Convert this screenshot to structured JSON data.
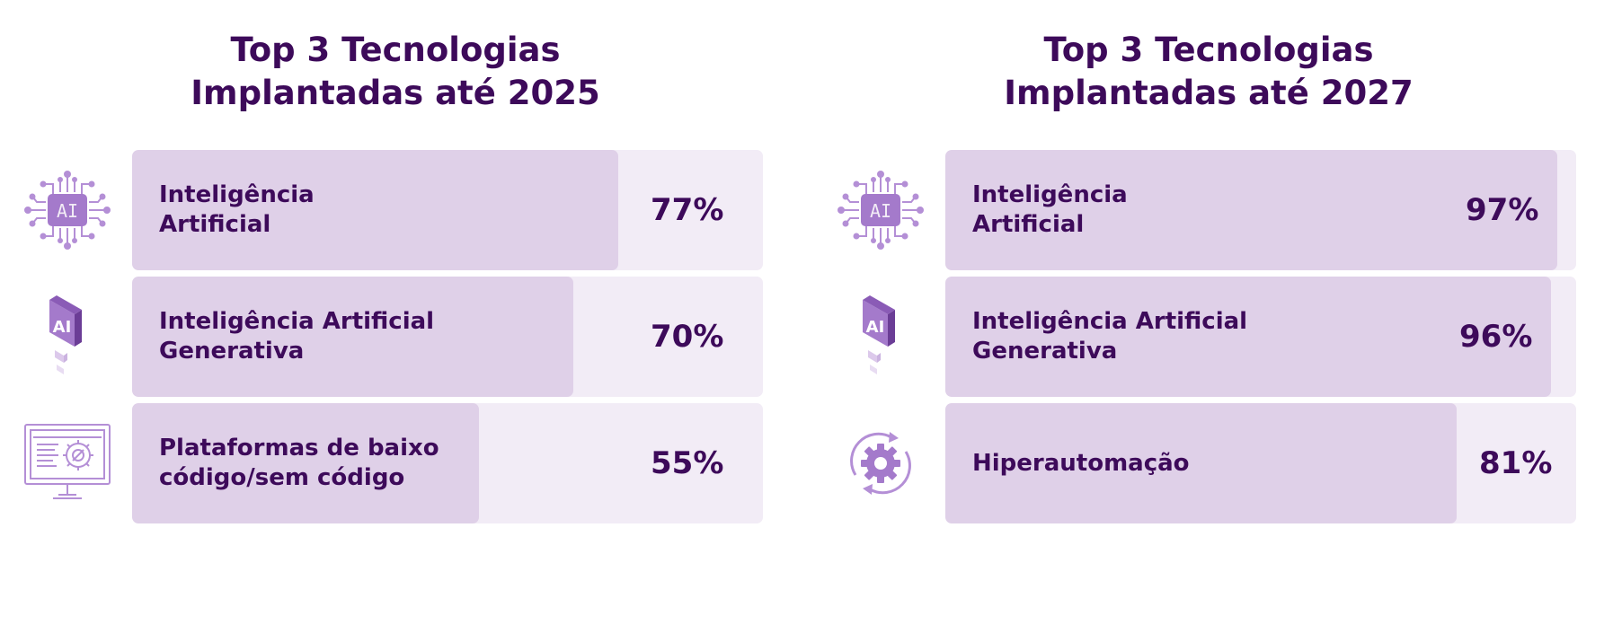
{
  "chart_data": [
    {
      "type": "bar",
      "orientation": "horizontal",
      "title": [
        "Top 3 Tecnologias",
        "Implantadas até 2025"
      ],
      "categories": [
        [
          "Inteligência",
          "Artificial"
        ],
        [
          "Inteligência Artificial",
          "Generativa"
        ],
        [
          "Plataformas de baixo",
          "código/sem código"
        ]
      ],
      "values": [
        77,
        70,
        55
      ],
      "value_labels": [
        "77%",
        "70%",
        "55%"
      ],
      "icons": [
        "ai-chip-icon",
        "ai-cube-icon",
        "no-code-monitor-icon"
      ],
      "xlim": [
        0,
        100
      ]
    },
    {
      "type": "bar",
      "orientation": "horizontal",
      "title": [
        "Top 3 Tecnologias",
        "Implantadas até 2027"
      ],
      "categories": [
        [
          "Inteligência",
          "Artificial"
        ],
        [
          "Inteligência Artificial",
          "Generativa"
        ],
        [
          "Hiperautomação"
        ]
      ],
      "values": [
        97,
        96,
        81
      ],
      "value_labels": [
        "97%",
        "96%",
        "81%"
      ],
      "icons": [
        "ai-chip-icon",
        "ai-cube-icon",
        "automation-gear-icon"
      ],
      "xlim": [
        0,
        100
      ]
    }
  ],
  "colors": {
    "text": "#3d0a5a",
    "bar_fill": "#dfd0e8",
    "bar_track": "#f2ecf6",
    "icon_primary": "#9b6fc4",
    "icon_light": "#d4bfe6"
  }
}
